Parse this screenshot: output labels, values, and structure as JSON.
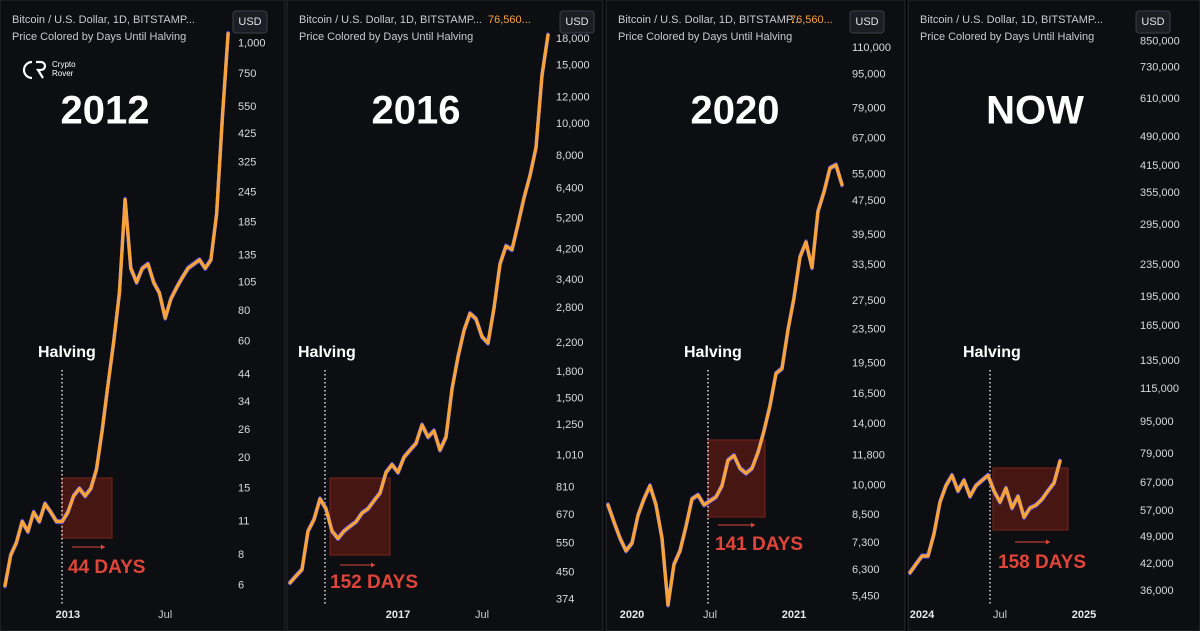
{
  "chart_data": [
    {
      "type": "line",
      "title": "Bitcoin / U.S. Dollar, 1D, BITSTAMP...",
      "subtitle": "Price Colored by Days Until Halving",
      "currency": "USD",
      "logo": [
        "Crypto",
        "Rover"
      ],
      "era_label": "2012",
      "halving_label": "Halving",
      "days_label": "44 DAYS",
      "log_scale": true,
      "grid": false,
      "color": "#f7a33c",
      "outline_color": "#3a3fd8",
      "ylim": [
        5,
        1400
      ],
      "yticks": [
        {
          "value": 1000,
          "label": "1,000"
        },
        750,
        550,
        425,
        325,
        245,
        185,
        135,
        105,
        80,
        60,
        44,
        34,
        26,
        20,
        15,
        11,
        8,
        6
      ],
      "categories": [
        null,
        null,
        null,
        null,
        null,
        null,
        null,
        null,
        null,
        null,
        null,
        "2013",
        null,
        null,
        null,
        null,
        null,
        null,
        null,
        null,
        null,
        null,
        null,
        null,
        null,
        null,
        null,
        null,
        "Jul",
        null,
        null,
        null,
        null,
        null,
        null,
        null,
        null,
        null,
        null,
        null
      ],
      "values": [
        6,
        8,
        9,
        11,
        10,
        12,
        11,
        13,
        12,
        11,
        11,
        12,
        14,
        15,
        14,
        15,
        18,
        26,
        40,
        60,
        95,
        230,
        120,
        105,
        120,
        125,
        105,
        95,
        75,
        90,
        100,
        110,
        120,
        125,
        130,
        120,
        130,
        200,
        500,
        1100
      ]
    },
    {
      "type": "line",
      "title": "Bitcoin / U.S. Dollar, 1D, BITSTAMP...",
      "price_label": "76,560...",
      "subtitle": "Price Colored by Days Until Halving",
      "currency": "USD",
      "era_label": "2016",
      "halving_label": "Halving",
      "days_label": "152 DAYS",
      "log_scale": true,
      "grid": false,
      "color": "#f7a33c",
      "outline_color": "#3a3fd8",
      "ylim": [
        360,
        22300
      ],
      "yticks": [
        {
          "value": 18000,
          "label": "18,000"
        },
        {
          "value": 15000,
          "label": "15,000"
        },
        {
          "value": 12000,
          "label": "12,000"
        },
        {
          "value": 10000,
          "label": "10,000"
        },
        {
          "value": 8000,
          "label": "8,000"
        },
        {
          "value": 6400,
          "label": "6,400"
        },
        {
          "value": 5200,
          "label": "5,200"
        },
        {
          "value": 4200,
          "label": "4,200"
        },
        {
          "value": 3400,
          "label": "3,400"
        },
        {
          "value": 2800,
          "label": "2,800"
        },
        {
          "value": 2200,
          "label": "2,200"
        },
        {
          "value": 1800,
          "label": "1,800"
        },
        {
          "value": 1500,
          "label": "1,500"
        },
        {
          "value": 1250,
          "label": "1,250"
        },
        {
          "value": 1010,
          "label": "1,010"
        },
        810,
        670,
        550,
        450,
        374
      ],
      "categories": [
        null,
        null,
        null,
        null,
        null,
        null,
        null,
        null,
        null,
        null,
        null,
        null,
        null,
        null,
        null,
        null,
        null,
        null,
        "2017",
        null,
        null,
        null,
        null,
        null,
        null,
        null,
        null,
        null,
        null,
        null,
        null,
        null,
        "Jul",
        null,
        null,
        null,
        null,
        null,
        null,
        null,
        null,
        null,
        null,
        null
      ],
      "values": [
        420,
        440,
        460,
        600,
        650,
        750,
        700,
        600,
        570,
        600,
        620,
        640,
        680,
        700,
        740,
        780,
        900,
        950,
        900,
        1000,
        1050,
        1100,
        1250,
        1150,
        1200,
        1050,
        1150,
        1600,
        2000,
        2400,
        2700,
        2600,
        2300,
        2200,
        2800,
        3800,
        4300,
        4200,
        5000,
        6000,
        7000,
        8500,
        14000,
        18500
      ]
    },
    {
      "type": "line",
      "title": "Bitcoin / U.S. Dollar, 1D, BITSTAMP...",
      "price_label": "76,560...",
      "subtitle": "Price Colored by Days Until Halving",
      "currency": "USD",
      "era_label": "2020",
      "halving_label": "Halving",
      "days_label": "141 DAYS",
      "log_scale": true,
      "grid": false,
      "color": "#f7a33c",
      "outline_color": "#3a3fd8",
      "ylim": [
        5200,
        137000
      ],
      "yticks": [
        {
          "value": 110000,
          "label": "110,000"
        },
        {
          "value": 95000,
          "label": "95,000"
        },
        {
          "value": 79000,
          "label": "79,000"
        },
        {
          "value": 67000,
          "label": "67,000"
        },
        {
          "value": 55000,
          "label": "55,000"
        },
        {
          "value": 47500,
          "label": "47,500"
        },
        {
          "value": 39500,
          "label": "39,500"
        },
        {
          "value": 33500,
          "label": "33,500"
        },
        {
          "value": 27500,
          "label": "27,500"
        },
        {
          "value": 23500,
          "label": "23,500"
        },
        {
          "value": 19500,
          "label": "19,500"
        },
        {
          "value": 16500,
          "label": "16,500"
        },
        {
          "value": 14000,
          "label": "14,000"
        },
        {
          "value": 11800,
          "label": "11,800"
        },
        {
          "value": 10000,
          "label": "10,000"
        },
        {
          "value": 8500,
          "label": "8,500"
        },
        {
          "value": 7300,
          "label": "7,300"
        },
        {
          "value": 6300,
          "label": "6,300"
        },
        {
          "value": 5450,
          "label": "5,450"
        }
      ],
      "categories": [
        null,
        null,
        null,
        null,
        "2020",
        null,
        null,
        null,
        null,
        null,
        null,
        null,
        null,
        null,
        null,
        null,
        null,
        "Jul",
        null,
        null,
        null,
        null,
        null,
        null,
        null,
        null,
        null,
        null,
        null,
        null,
        null,
        "2021",
        null,
        null,
        null,
        null,
        null,
        null,
        null,
        null
      ],
      "values": [
        9000,
        8200,
        7500,
        7000,
        7300,
        8500,
        9300,
        10000,
        9000,
        7500,
        5200,
        6500,
        7000,
        8000,
        9300,
        9500,
        9000,
        9200,
        9400,
        10000,
        11500,
        11800,
        11000,
        10700,
        11000,
        12000,
        13500,
        15500,
        18500,
        19000,
        23500,
        28000,
        35000,
        38000,
        33000,
        45000,
        50000,
        57000,
        58000,
        52000
      ]
    },
    {
      "type": "line",
      "title": "Bitcoin / U.S. Dollar, 1D, BITSTAMP...",
      "subtitle": "Price Colored by Days Until Halving",
      "currency": "USD",
      "era_label": "NOW",
      "halving_label": "Halving",
      "days_label": "158 DAYS",
      "log_scale": true,
      "grid": false,
      "color": "#f7a33c",
      "outline_color": "#3a3fd8",
      "ylim": [
        33200,
        1030000
      ],
      "yticks": [
        {
          "value": 850000,
          "label": "850,000"
        },
        {
          "value": 730000,
          "label": "730,000"
        },
        {
          "value": 610000,
          "label": "610,000"
        },
        {
          "value": 490000,
          "label": "490,000"
        },
        {
          "value": 415000,
          "label": "415,000"
        },
        {
          "value": 355000,
          "label": "355,000"
        },
        {
          "value": 295000,
          "label": "295,000"
        },
        {
          "value": 235000,
          "label": "235,000"
        },
        {
          "value": 195000,
          "label": "195,000"
        },
        {
          "value": 165000,
          "label": "165,000"
        },
        {
          "value": 135000,
          "label": "135,000"
        },
        {
          "value": 115000,
          "label": "115,000"
        },
        {
          "value": 95000,
          "label": "95,000"
        },
        {
          "value": 79000,
          "label": "79,000"
        },
        {
          "value": 67000,
          "label": "67,000"
        },
        {
          "value": 57000,
          "label": "57,000"
        },
        {
          "value": 49000,
          "label": "49,000"
        },
        {
          "value": 42000,
          "label": "42,000"
        },
        {
          "value": 36000,
          "label": "36,000"
        }
      ],
      "categories": [
        null,
        null,
        "2024",
        null,
        null,
        null,
        null,
        null,
        null,
        null,
        null,
        null,
        null,
        null,
        null,
        "Jul",
        null,
        null,
        null,
        null,
        null,
        null,
        null,
        null,
        null,
        null,
        null,
        null,
        null,
        "2025"
      ],
      "values": [
        40000,
        42000,
        44000,
        44000,
        50000,
        60000,
        66000,
        70000,
        64000,
        68000,
        62000,
        66000,
        68000,
        70000,
        64000,
        60000,
        65000,
        58000,
        62000,
        55000,
        58000,
        59000,
        61000,
        64000,
        67000,
        76000,
        null,
        null,
        null,
        null
      ]
    }
  ]
}
